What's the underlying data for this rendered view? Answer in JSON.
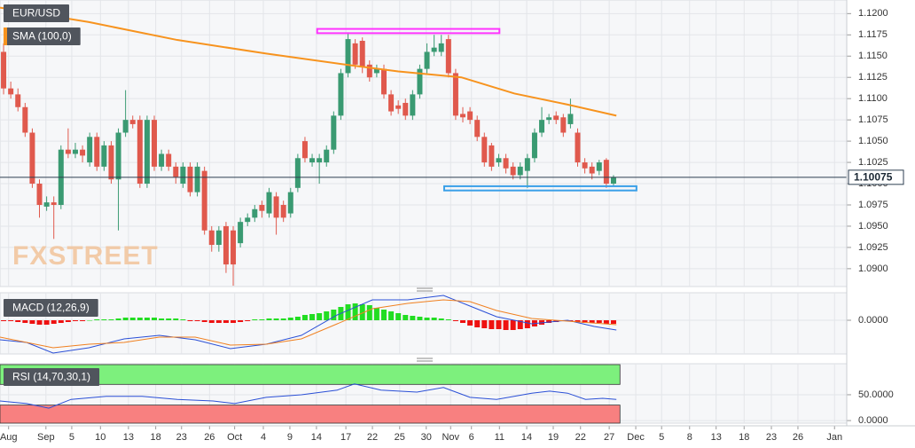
{
  "chart_data": [
    {
      "type": "candlestick",
      "name": "EUR/USD",
      "up_color": "#3a9a72",
      "down_color": "#e0594d",
      "open": [
        1.1155,
        1.1112,
        1.1105,
        1.109,
        1.106,
        1.1,
        1.0973,
        1.0978,
        1.0975,
        1.104,
        1.1035,
        1.104,
        1.1025,
        1.1055,
        1.102,
        1.1045,
        1.1005,
        1.106,
        1.1075,
        1.1075,
        1.1,
        1.1075,
        1.102,
        1.1035,
        1.102,
        1.1,
        1.102,
        1.099,
        1.1015,
        1.0945,
        1.0928,
        1.095,
        1.0945,
        1.093,
        1.0955,
        1.096,
        1.0975,
        1.0965,
        1.0985,
        1.0975,
        1.0965,
        1.0995,
        1.105,
        1.1025,
        1.1025,
        1.1025,
        1.104,
        1.108,
        1.113,
        1.1165,
        1.1168,
        1.114,
        1.113,
        1.1135,
        1.1105,
        1.1092,
        1.1095,
        1.108,
        1.1105,
        1.1135,
        1.1155,
        1.1155,
        1.117,
        1.113,
        1.1082,
        1.1085,
        1.1075,
        1.1055,
        1.1045,
        1.1025,
        1.103,
        1.102,
        1.101,
        1.1015,
        1.103,
        1.106,
        1.1075,
        1.108,
        1.1078,
        1.107,
        1.106,
        1.1025,
        1.102,
        1.1015,
        1.1028,
        1.1
      ],
      "high": [
        1.1165,
        1.112,
        1.1112,
        1.1095,
        1.1065,
        1.1005,
        1.0985,
        1.0985,
        1.1045,
        1.1065,
        1.1048,
        1.1045,
        1.106,
        1.106,
        1.105,
        1.105,
        1.1065,
        1.111,
        1.108,
        1.108,
        1.108,
        1.108,
        1.104,
        1.104,
        1.1025,
        1.1025,
        1.1025,
        1.1025,
        1.102,
        1.095,
        1.095,
        1.0955,
        1.095,
        1.096,
        1.0965,
        1.0975,
        1.098,
        1.0995,
        1.099,
        1.098,
        1.0995,
        1.1035,
        1.1055,
        1.1035,
        1.1035,
        1.1045,
        1.1085,
        1.1135,
        1.1178,
        1.117,
        1.1172,
        1.1145,
        1.114,
        1.114,
        1.111,
        1.1098,
        1.11,
        1.111,
        1.114,
        1.1165,
        1.1175,
        1.1175,
        1.1175,
        1.1135,
        1.109,
        1.109,
        1.108,
        1.106,
        1.1048,
        1.1035,
        1.1035,
        1.1025,
        1.1025,
        1.1035,
        1.1065,
        1.109,
        1.1082,
        1.1085,
        1.1082,
        1.11,
        1.1065,
        1.103,
        1.1025,
        1.1028,
        1.103,
        1.101
      ],
      "low": [
        1.1105,
        1.11,
        1.1085,
        1.1055,
        1.0995,
        1.096,
        1.0968,
        1.0935,
        1.097,
        1.103,
        1.103,
        1.1025,
        1.102,
        1.1015,
        1.1015,
        1.1,
        1.0945,
        1.1055,
        1.1065,
        1.0995,
        1.0995,
        1.1015,
        1.1015,
        1.1015,
        1.1,
        1.0995,
        1.0985,
        1.0985,
        1.094,
        1.092,
        1.092,
        1.0895,
        1.088,
        1.0925,
        1.095,
        1.0955,
        1.096,
        1.096,
        1.094,
        1.0955,
        1.096,
        1.099,
        1.1025,
        1.102,
        1.1,
        1.102,
        1.1035,
        1.1075,
        1.1125,
        1.1135,
        1.113,
        1.112,
        1.1125,
        1.11,
        1.108,
        1.1082,
        1.1075,
        1.1075,
        1.11,
        1.113,
        1.115,
        1.115,
        1.1125,
        1.1075,
        1.1072,
        1.107,
        1.105,
        1.102,
        1.1015,
        1.102,
        1.1012,
        1.1005,
        1.1005,
        1.0995,
        1.1025,
        1.1055,
        1.107,
        1.107,
        1.1055,
        1.1065,
        1.102,
        1.1012,
        1.1005,
        1.101,
        1.0995,
        1.0998
      ],
      "close": [
        1.1112,
        1.1105,
        1.109,
        1.106,
        1.1,
        1.0975,
        1.0978,
        1.0975,
        1.104,
        1.1035,
        1.104,
        1.1033,
        1.1055,
        1.102,
        1.1045,
        1.1005,
        1.106,
        1.1075,
        1.107,
        1.1,
        1.1075,
        1.102,
        1.1035,
        1.102,
        1.1008,
        1.102,
        1.099,
        1.102,
        1.0945,
        1.0928,
        1.0945,
        1.0905,
        1.0905,
        1.0955,
        1.096,
        1.097,
        1.0968,
        1.099,
        1.096,
        1.096,
        1.099,
        1.103,
        1.103,
        1.103,
        1.103,
        1.104,
        1.108,
        1.113,
        1.117,
        1.114,
        1.1137,
        1.1125,
        1.1135,
        1.1105,
        1.1085,
        1.1088,
        1.108,
        1.1105,
        1.1135,
        1.1155,
        1.116,
        1.1165,
        1.113,
        1.108,
        1.1078,
        1.1075,
        1.1055,
        1.1025,
        1.102,
        1.103,
        1.1018,
        1.101,
        1.102,
        1.103,
        1.106,
        1.1075,
        1.1078,
        1.1075,
        1.106,
        1.1082,
        1.1025,
        1.1018,
        1.1012,
        1.1025,
        1.1,
        1.10075
      ],
      "overlays": [
        {
          "name": "SMA (100,0)",
          "color": "#f7931e",
          "x": [
            -0.5,
            11.9,
            24.2,
            36.6,
            47.7,
            55,
            63.8,
            71.2,
            78.6,
            85.4
          ],
          "values": [
            1.1207,
            1.119,
            1.1169,
            1.1153,
            1.114,
            1.1132,
            1.1125,
            1.1106,
            1.1093,
            1.108
          ]
        }
      ],
      "zones": [
        {
          "color": "#ff33ff",
          "x": [
            43.7,
            69.1
          ],
          "y": [
            1.1177,
            1.1182
          ]
        },
        {
          "color": "#3aa0e8",
          "x": [
            61.4,
            88.2
          ],
          "y": [
            1.0992,
            1.0997
          ]
        }
      ],
      "last_price": 1.10075,
      "watermark": "FXSTREET",
      "xlim": [
        -0.5,
        117.5
      ],
      "ylim": [
        1.0879,
        1.1216
      ],
      "yticks": [
        {
          "value": 1.09,
          "label": "1.0900"
        },
        {
          "value": 1.0925,
          "label": "1.0925"
        },
        {
          "value": 1.095,
          "label": "1.0950"
        },
        {
          "value": 1.0975,
          "label": "1.0975"
        },
        {
          "value": 1.1,
          "label": "1.1000"
        },
        {
          "value": 1.1025,
          "label": "1.1025"
        },
        {
          "value": 1.105,
          "label": "1.1050"
        },
        {
          "value": 1.1075,
          "label": "1.1075"
        },
        {
          "value": 1.11,
          "label": "1.1100"
        },
        {
          "value": 1.1125,
          "label": "1.1125"
        },
        {
          "value": 1.115,
          "label": "1.1150"
        },
        {
          "value": 1.1175,
          "label": "1.1175"
        },
        {
          "value": 1.12,
          "label": "1.1200"
        }
      ],
      "grid": true
    },
    {
      "type": "macd",
      "name": "MACD (12,26,9)",
      "up_color": "#22dd22",
      "down_color": "#ee1111",
      "histogram": [
        -0.0001,
        -0.0001,
        -0.0002,
        -0.0003,
        -0.0004,
        -0.0005,
        -0.0005,
        -0.0004,
        -0.0003,
        -0.0002,
        -0.0001,
        -0.0001,
        0,
        0.0001,
        0.0001,
        0.0001,
        0.0002,
        0.0003,
        0.0003,
        0.0003,
        0.0003,
        0.0003,
        0.0002,
        0.0002,
        0.0002,
        0.0001,
        -0.0001,
        -0.0001,
        -0.0002,
        -0.0003,
        -0.0003,
        -0.0003,
        -0.0003,
        -0.0002,
        -0.0001,
        0.0001,
        0.0001,
        0.0002,
        0.0002,
        0.0002,
        0.0003,
        0.0004,
        0.0006,
        0.0007,
        0.0008,
        0.001,
        0.0012,
        0.0015,
        0.0018,
        0.0019,
        0.0018,
        0.0017,
        0.0014,
        0.0012,
        0.001,
        0.0008,
        0.0006,
        0.0005,
        0.0004,
        0.0003,
        0.0003,
        0.0002,
        0.0001,
        -0.0001,
        -0.0003,
        -0.0006,
        -0.0008,
        -0.0009,
        -0.001,
        -0.001,
        -0.0011,
        -0.0011,
        -0.001,
        -0.0009,
        -0.0007,
        -0.0005,
        -0.0003,
        -0.0002,
        -0.0001,
        -0.0001,
        -0.0002,
        -0.0003,
        -0.0003,
        -0.0003,
        -0.0004,
        -0.0004
      ],
      "lines": [
        {
          "color": "#2a4fd6",
          "x": [
            -0.5,
            3.2,
            6.9,
            11.9,
            16.8,
            21.7,
            26.7,
            31.6,
            36.6,
            41.5,
            46.5,
            51.4,
            56.3,
            61.3,
            65,
            68.7,
            73.6,
            78.6,
            82.3,
            85.4
          ],
          "values": [
            -0.0022,
            -0.0025,
            -0.0037,
            -0.0031,
            -0.0021,
            -0.0017,
            -0.0022,
            -0.0032,
            -0.0027,
            -0.0017,
            0.0006,
            0.0023,
            0.0023,
            0.0028,
            0.0016,
            0.0004,
            -0.0004,
            0,
            -0.0007,
            -0.0011
          ]
        },
        {
          "color": "#f08020",
          "x": [
            -0.5,
            6.9,
            11.9,
            16.8,
            21.7,
            26.7,
            31.6,
            36.6,
            41.5,
            46.5,
            51.4,
            56.3,
            61.3,
            65,
            68.7,
            73.6,
            78.6,
            85.4
          ],
          "values": [
            -0.0019,
            -0.0031,
            -0.0027,
            -0.0025,
            -0.0019,
            -0.0019,
            -0.0028,
            -0.0027,
            -0.0021,
            -0.0004,
            0.0013,
            0.0019,
            0.0023,
            0.0021,
            0.0011,
            0.0002,
            -0.0001,
            -0.0005
          ]
        }
      ],
      "xlim": [
        -0.5,
        117.5
      ],
      "ylim": [
        -0.0038,
        0.0031
      ],
      "yticks": [
        {
          "value": 0,
          "label": "0.0000"
        }
      ],
      "grid": true
    },
    {
      "type": "rsi",
      "name": "RSI (14,70,30,1)",
      "color": "#2a4fd6",
      "x": [
        -0.5,
        3.2,
        6.3,
        9.4,
        14.3,
        19.3,
        24.2,
        29.2,
        32.2,
        36.6,
        41.5,
        46.5,
        48.9,
        52.6,
        57.6,
        61.3,
        65,
        68.7,
        73.6,
        76.1,
        78.6,
        81.1,
        83.5,
        85.4
      ],
      "values": [
        38,
        33,
        24,
        41,
        47,
        47,
        41,
        38,
        33,
        45,
        50,
        59,
        71,
        59,
        55,
        64,
        45,
        41,
        53,
        57,
        53,
        41,
        43,
        41
      ],
      "overbought": 70,
      "oversold": 30,
      "overbought_color": "#7df07d",
      "oversold_color": "#f88080",
      "xlim": [
        -0.5,
        117.5
      ],
      "ylim": [
        -5,
        110
      ],
      "yticks": [
        {
          "value": 50,
          "label": "50.0000"
        },
        {
          "value": 0,
          "label": "0.0000"
        }
      ],
      "xticks": [
        {
          "value": 0.7,
          "label": "Aug"
        },
        {
          "value": 5.9,
          "label": "Sep"
        },
        {
          "value": 9.5,
          "label": "5"
        },
        {
          "value": 13.5,
          "label": "10"
        },
        {
          "value": 17.4,
          "label": "13"
        },
        {
          "value": 21.2,
          "label": "18"
        },
        {
          "value": 24.8,
          "label": "23"
        },
        {
          "value": 28.7,
          "label": "26"
        },
        {
          "value": 32.2,
          "label": "Oct"
        },
        {
          "value": 36.2,
          "label": "4"
        },
        {
          "value": 39.9,
          "label": "9"
        },
        {
          "value": 43.6,
          "label": "14"
        },
        {
          "value": 47.7,
          "label": "17"
        },
        {
          "value": 51.4,
          "label": "22"
        },
        {
          "value": 55.2,
          "label": "25"
        },
        {
          "value": 58.9,
          "label": "30"
        },
        {
          "value": 62.3,
          "label": "Nov"
        },
        {
          "value": 65.2,
          "label": "6"
        },
        {
          "value": 69.1,
          "label": "11"
        },
        {
          "value": 72.9,
          "label": "14"
        },
        {
          "value": 76.6,
          "label": "19"
        },
        {
          "value": 80.4,
          "label": "22"
        },
        {
          "value": 84.4,
          "label": "27"
        },
        {
          "value": 88.1,
          "label": "Dec"
        },
        {
          "value": 91.7,
          "label": "5"
        },
        {
          "value": 95.6,
          "label": "8"
        },
        {
          "value": 99.3,
          "label": "13"
        },
        {
          "value": 103.2,
          "label": "18"
        },
        {
          "value": 107,
          "label": "23"
        },
        {
          "value": 110.7,
          "label": "26"
        },
        {
          "value": 115.8,
          "label": "Jan"
        }
      ],
      "grid": true
    }
  ]
}
